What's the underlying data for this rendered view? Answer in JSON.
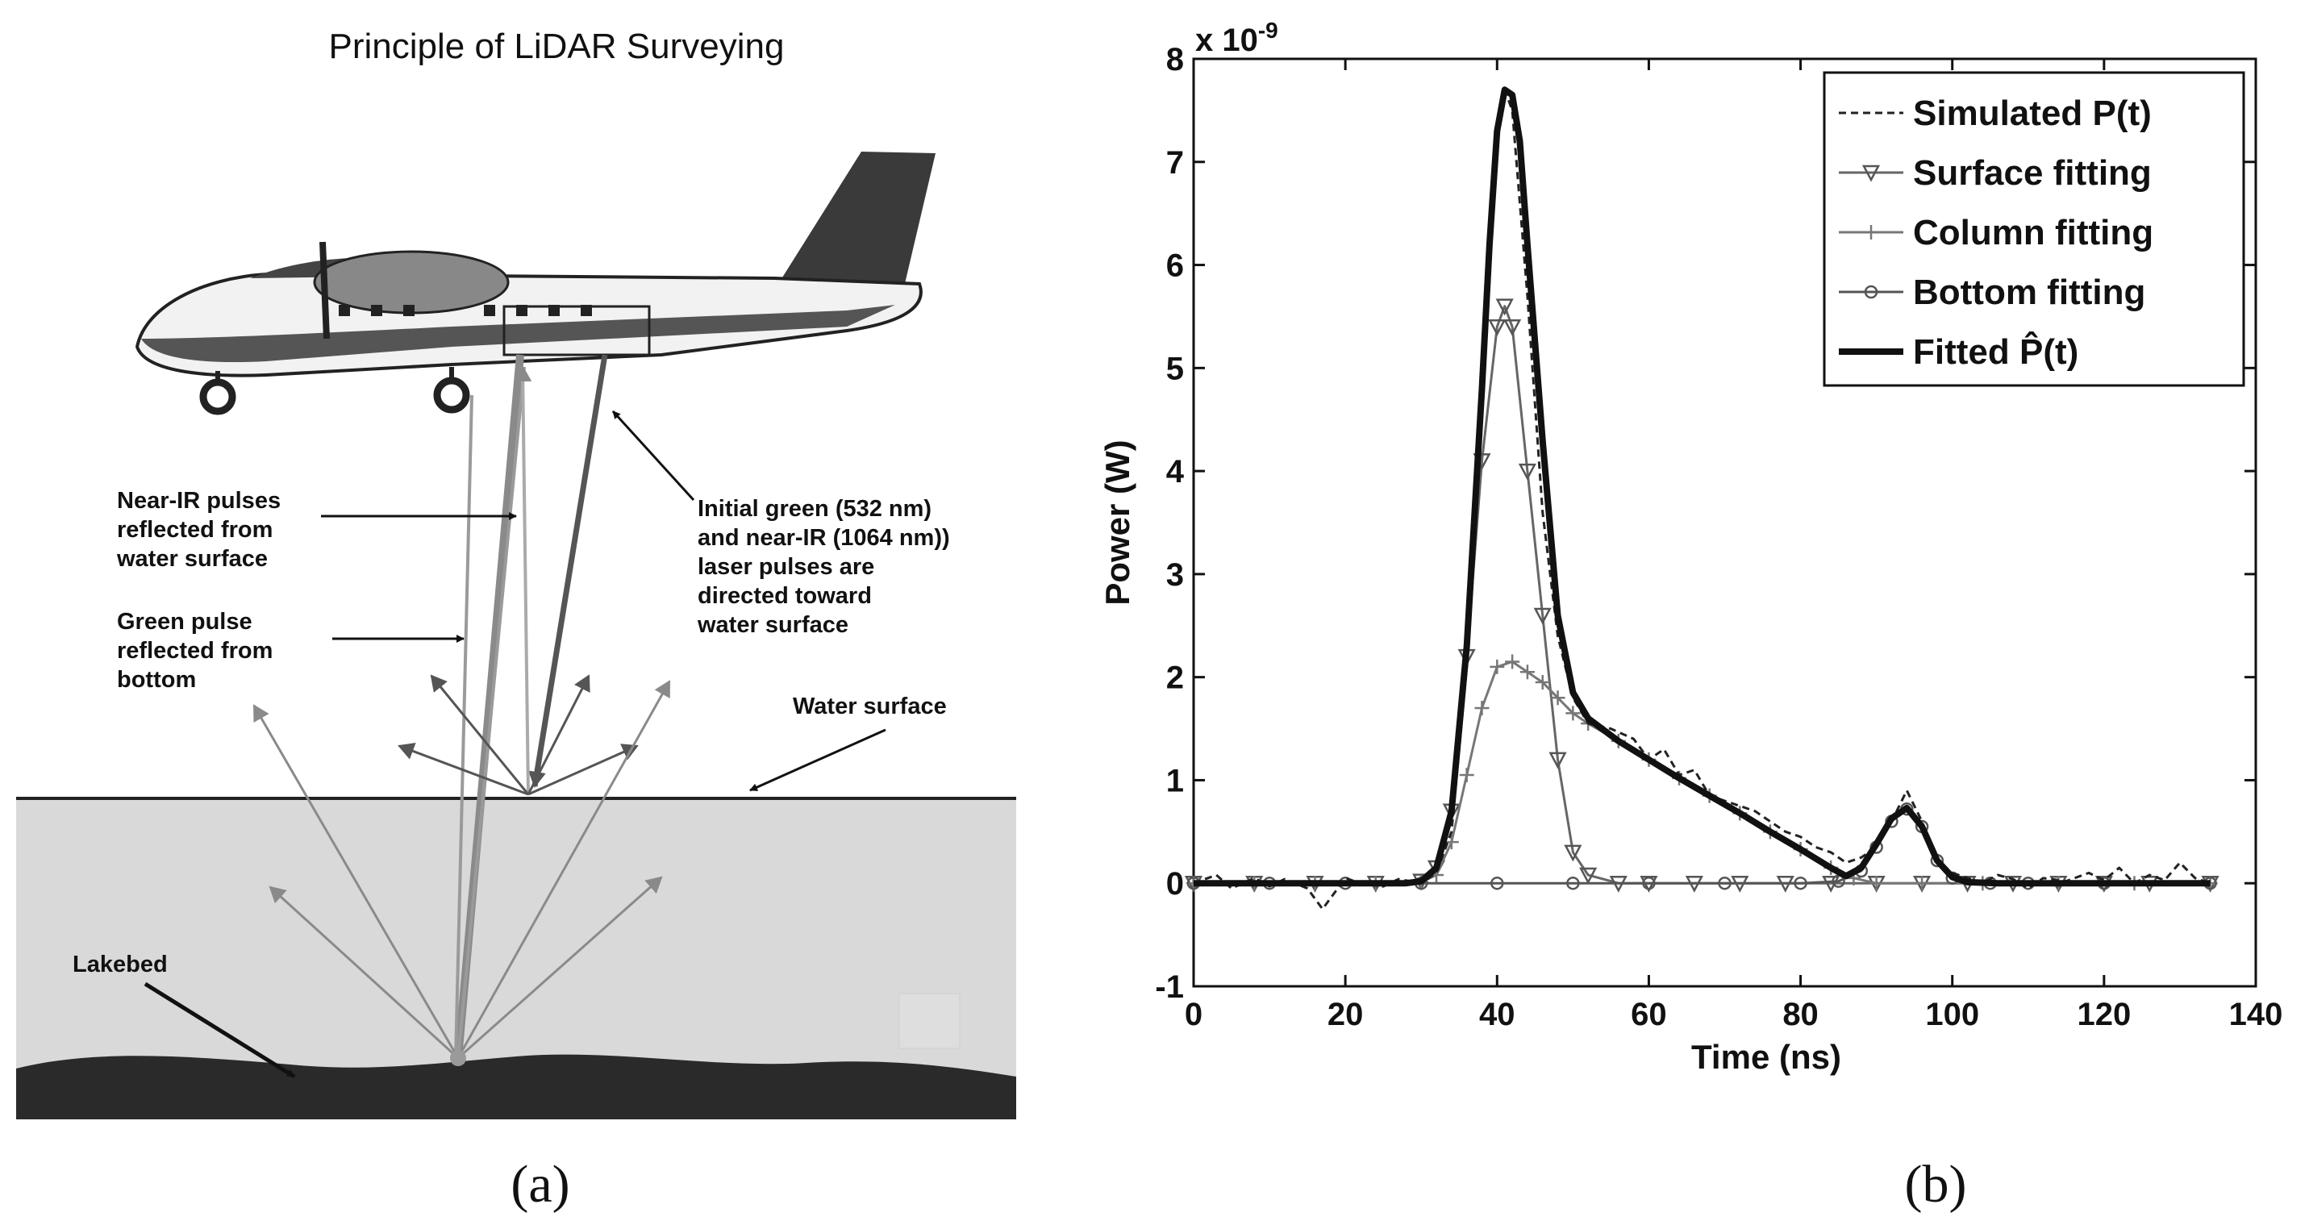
{
  "panel_a": {
    "title": "Principle of LiDAR Surveying",
    "label": "(a)",
    "annotations": {
      "near_ir": [
        "Near-IR pulses",
        "reflected from",
        "water surface"
      ],
      "green": [
        "Green pulse",
        "reflected from",
        "bottom"
      ],
      "initial": [
        "Initial green (532 nm)",
        "and near-IR (1064 nm))",
        "laser pulses are",
        "directed toward",
        "water surface"
      ],
      "water_surface": "Water surface",
      "lakebed": "Lakebed"
    }
  },
  "panel_b": {
    "label": "(b)",
    "exponent_label": "x 10",
    "exponent_power": "-9"
  },
  "chart_data": {
    "type": "line",
    "title": "",
    "xlabel": "Time (ns)",
    "ylabel": "Power (W)",
    "xlim": [
      0,
      140
    ],
    "ylim": [
      -1,
      8
    ],
    "y_scale": "1e-9",
    "xticks": [
      0,
      20,
      40,
      60,
      80,
      100,
      120,
      140
    ],
    "yticks": [
      -1,
      0,
      1,
      2,
      3,
      4,
      5,
      6,
      7,
      8
    ],
    "legend_position": "top-right",
    "series": [
      {
        "name": "Simulated P(t)",
        "style": "dashed",
        "x": [
          0,
          3,
          5,
          8,
          10,
          12,
          15,
          17,
          20,
          22,
          25,
          27,
          30,
          32,
          34,
          36,
          38,
          40,
          41,
          42,
          44,
          46,
          48,
          50,
          52,
          55,
          58,
          60,
          62,
          64,
          66,
          68,
          70,
          72,
          74,
          76,
          78,
          80,
          82,
          84,
          86,
          88,
          90,
          92,
          94,
          96,
          98,
          100,
          102,
          104,
          106,
          108,
          110,
          112,
          115,
          118,
          120,
          122,
          124,
          126,
          128,
          130,
          132,
          134
        ],
        "y": [
          0,
          0.08,
          -0.05,
          0.05,
          -0.03,
          0.04,
          -0.05,
          -0.25,
          0.05,
          0,
          -0.03,
          0.04,
          0,
          0.1,
          0.5,
          2.1,
          4.9,
          7.2,
          7.7,
          7.5,
          5.7,
          3.6,
          2.4,
          1.8,
          1.55,
          1.5,
          1.4,
          1.2,
          1.3,
          1.05,
          1.1,
          0.85,
          0.8,
          0.75,
          0.7,
          0.6,
          0.5,
          0.45,
          0.35,
          0.3,
          0.2,
          0.25,
          0.35,
          0.6,
          0.9,
          0.6,
          0.2,
          0.1,
          0.05,
          0,
          0.08,
          0.04,
          -0.05,
          0.05,
          0.02,
          0.1,
          0.03,
          0.15,
          0,
          0.08,
          0.03,
          0.2,
          0.05,
          0
        ]
      },
      {
        "name": "Surface fitting",
        "marker": "triangle-down",
        "x": [
          0,
          8,
          16,
          24,
          30,
          32,
          34,
          36,
          38,
          40,
          41,
          42,
          44,
          46,
          48,
          50,
          52,
          56,
          60,
          66,
          72,
          78,
          84,
          90,
          96,
          102,
          108,
          114,
          120,
          126,
          134
        ],
        "y": [
          0,
          0,
          0,
          0,
          0.02,
          0.15,
          0.7,
          2.2,
          4.1,
          5.4,
          5.6,
          5.4,
          4.0,
          2.6,
          1.2,
          0.3,
          0.08,
          0,
          0,
          0,
          0,
          0,
          0,
          0,
          0,
          0,
          0,
          0,
          0,
          0,
          0
        ]
      },
      {
        "name": "Column fitting",
        "marker": "plus",
        "x": [
          0,
          8,
          16,
          24,
          30,
          32,
          34,
          36,
          38,
          40,
          42,
          44,
          46,
          48,
          50,
          52,
          56,
          60,
          64,
          68,
          72,
          76,
          80,
          84,
          87,
          90,
          96,
          104,
          114,
          124,
          134
        ],
        "y": [
          0,
          0,
          0,
          0,
          0.01,
          0.08,
          0.4,
          1.05,
          1.7,
          2.1,
          2.15,
          2.05,
          1.95,
          1.8,
          1.65,
          1.55,
          1.38,
          1.2,
          1.02,
          0.85,
          0.68,
          0.5,
          0.33,
          0.15,
          0.05,
          0,
          0,
          0,
          0,
          0,
          0
        ]
      },
      {
        "name": "Bottom fitting",
        "marker": "circle",
        "x": [
          0,
          10,
          20,
          30,
          40,
          50,
          60,
          70,
          80,
          85,
          88,
          90,
          92,
          94,
          96,
          98,
          100,
          105,
          110,
          120,
          134
        ],
        "y": [
          0,
          0,
          0,
          0,
          0,
          0,
          0,
          0,
          0,
          0.02,
          0.12,
          0.35,
          0.6,
          0.72,
          0.55,
          0.22,
          0.05,
          0,
          0,
          0,
          0
        ]
      },
      {
        "name": "Fitted P̂(t)",
        "style": "bold",
        "x": [
          0,
          10,
          20,
          28,
          30,
          32,
          34,
          36,
          38,
          39,
          40,
          41,
          42,
          43,
          44,
          46,
          48,
          50,
          52,
          56,
          60,
          64,
          68,
          72,
          76,
          80,
          84,
          86,
          88,
          90,
          92,
          94,
          96,
          98,
          100,
          102,
          106,
          115,
          125,
          134
        ],
        "y": [
          0,
          0,
          0,
          0,
          0.02,
          0.15,
          0.7,
          2.3,
          4.8,
          6.2,
          7.3,
          7.7,
          7.65,
          7.2,
          6.2,
          4.3,
          2.6,
          1.85,
          1.6,
          1.38,
          1.2,
          1.02,
          0.85,
          0.68,
          0.5,
          0.33,
          0.15,
          0.07,
          0.15,
          0.38,
          0.63,
          0.73,
          0.55,
          0.22,
          0.06,
          0.01,
          0,
          0,
          0,
          0
        ]
      }
    ]
  }
}
